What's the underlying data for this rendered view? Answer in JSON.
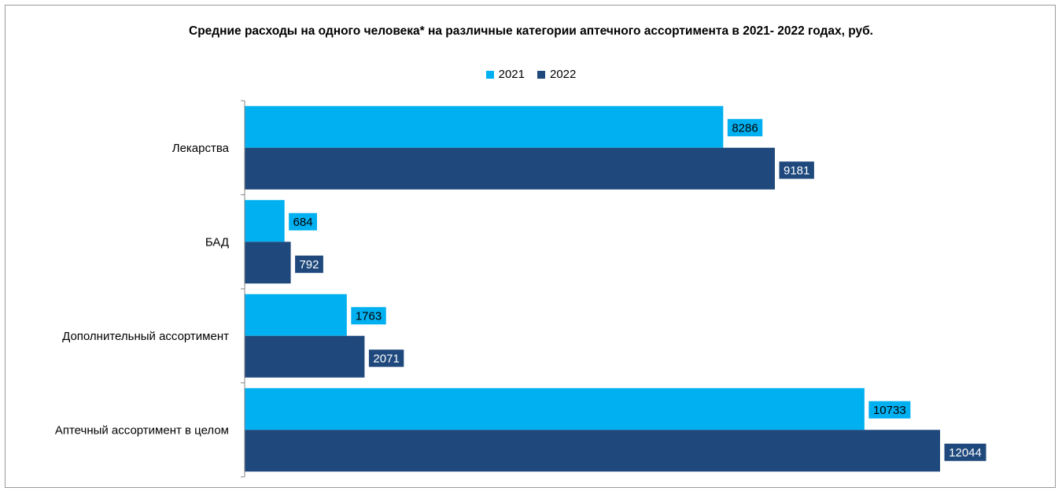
{
  "chart_data": {
    "type": "bar",
    "orientation": "horizontal",
    "title": "Средние расходы на одного человека* на различные категории аптечного ассортимента в 2021- 2022 годах, руб.",
    "xlabel": "",
    "ylabel": "",
    "categories": [
      "Лекарства",
      "БАД",
      "Дополнительный ассортимент",
      "Аптечный ассортимент в целом"
    ],
    "series": [
      {
        "name": "2021",
        "color": "#00b0f0",
        "values": [
          8286,
          684,
          1763,
          10733
        ]
      },
      {
        "name": "2022",
        "color": "#1f497d",
        "values": [
          9181,
          792,
          2071,
          12044
        ]
      }
    ],
    "xlim": [
      0,
      14000
    ],
    "grid": false,
    "legend_position": "top"
  }
}
